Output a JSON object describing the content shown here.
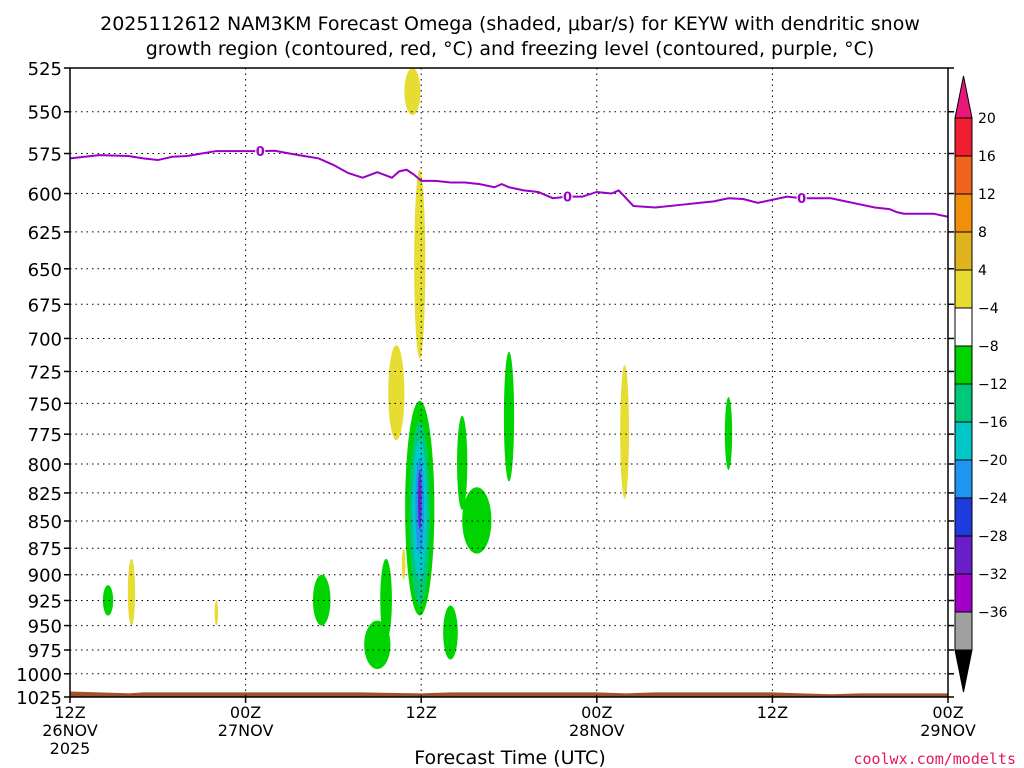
{
  "chart_data": {
    "type": "heatmap",
    "title_line1": "2025112612 NAM3KM Forecast Omega (shaded, μbar/s) for KEYW with dendritic snow",
    "title_line2": "growth region (contoured, red, °C) and freezing level (contoured, purple, °C)",
    "xlabel": "Forecast Time (UTC)",
    "credit": "coolwx.com/modelts",
    "x_range_hours": [
      0,
      60
    ],
    "y_range_hpa": [
      525,
      1025
    ],
    "y_scale": "log-pressure",
    "grid": true,
    "y_ticks": [
      525,
      550,
      575,
      600,
      625,
      650,
      675,
      700,
      725,
      750,
      775,
      800,
      825,
      850,
      875,
      900,
      925,
      950,
      975,
      1000,
      1025
    ],
    "x_ticks": [
      {
        "hour": 0,
        "line1": "12Z",
        "line2": "26NOV",
        "line3": "2025"
      },
      {
        "hour": 12,
        "line1": "00Z",
        "line2": "27NOV",
        "line3": ""
      },
      {
        "hour": 24,
        "line1": "12Z",
        "line2": "",
        "line3": ""
      },
      {
        "hour": 36,
        "line1": "00Z",
        "line2": "28NOV",
        "line3": ""
      },
      {
        "hour": 48,
        "line1": "12Z",
        "line2": "",
        "line3": ""
      },
      {
        "hour": 60,
        "line1": "00Z",
        "line2": "29NOV",
        "line3": ""
      }
    ],
    "colorbar": {
      "labels": [
        "20",
        "16",
        "12",
        "8",
        "4",
        "−4",
        "−8",
        "−12",
        "−16",
        "−20",
        "−24",
        "−28",
        "−32",
        "−36"
      ],
      "top_arrow_color": "#e8177a",
      "bottom_arrow_color": "#000000",
      "bins": [
        {
          "color": "#f01e30"
        },
        {
          "color": "#f06420"
        },
        {
          "color": "#f0900a"
        },
        {
          "color": "#e0b41e"
        },
        {
          "color": "#e6dc32"
        },
        {
          "color": "#ffffff"
        },
        {
          "color": "#00d400"
        },
        {
          "color": "#00c878"
        },
        {
          "color": "#00c8c8"
        },
        {
          "color": "#1e96f0"
        },
        {
          "color": "#1e3cdc"
        },
        {
          "color": "#6a1ec8"
        },
        {
          "color": "#a000c8"
        },
        {
          "color": "#a0a0a0"
        }
      ]
    },
    "freezing_level": {
      "color": "#9a00c8",
      "label": "0",
      "label_hours": [
        13,
        34,
        50
      ],
      "points": [
        [
          0,
          578
        ],
        [
          1,
          577
        ],
        [
          2,
          576
        ],
        [
          4,
          576.5
        ],
        [
          5,
          578
        ],
        [
          6,
          579
        ],
        [
          7,
          577
        ],
        [
          8,
          576.5
        ],
        [
          9,
          575
        ],
        [
          10,
          573.5
        ],
        [
          11,
          573.5
        ],
        [
          12,
          573.5
        ],
        [
          13,
          573.5
        ],
        [
          14,
          573.3
        ],
        [
          15,
          575
        ],
        [
          16,
          576.5
        ],
        [
          17,
          578
        ],
        [
          18,
          582
        ],
        [
          19,
          587
        ],
        [
          20,
          590
        ],
        [
          21,
          586.5
        ],
        [
          22,
          590
        ],
        [
          22.5,
          586
        ],
        [
          23,
          585
        ],
        [
          23.5,
          588
        ],
        [
          24,
          592
        ],
        [
          25,
          592
        ],
        [
          26,
          593
        ],
        [
          27,
          593
        ],
        [
          28,
          594
        ],
        [
          29,
          596
        ],
        [
          29.5,
          594
        ],
        [
          30,
          596
        ],
        [
          31,
          598
        ],
        [
          32,
          599
        ],
        [
          32.5,
          601
        ],
        [
          33,
          603
        ],
        [
          34,
          602
        ],
        [
          35,
          602
        ],
        [
          36,
          599
        ],
        [
          37,
          600
        ],
        [
          37.5,
          598
        ],
        [
          38,
          603
        ],
        [
          38.5,
          608
        ],
        [
          40,
          609
        ],
        [
          42,
          607
        ],
        [
          43,
          606
        ],
        [
          44,
          605
        ],
        [
          45,
          603
        ],
        [
          46,
          603.5
        ],
        [
          47,
          606
        ],
        [
          48,
          604
        ],
        [
          49,
          602
        ],
        [
          50,
          603
        ],
        [
          51,
          603
        ],
        [
          52,
          603
        ],
        [
          53,
          605
        ],
        [
          54,
          607
        ],
        [
          55,
          609
        ],
        [
          56,
          610
        ],
        [
          56.5,
          612
        ],
        [
          57,
          613
        ],
        [
          58,
          613
        ],
        [
          59,
          613
        ],
        [
          60,
          615
        ]
      ]
    },
    "omega_blobs": [
      {
        "hour": 23.4,
        "hw": 0.55,
        "p_top": 525,
        "p_bot": 552,
        "color": "#e6dc32"
      },
      {
        "hour": 23.9,
        "hw": 0.38,
        "p_top": 585,
        "p_bot": 715,
        "color": "#e6dc32"
      },
      {
        "hour": 22.3,
        "hw": 0.55,
        "p_top": 705,
        "p_bot": 780,
        "color": "#e6dc32"
      },
      {
        "hour": 23.9,
        "hw": 1.0,
        "p_top": 748,
        "p_bot": 940,
        "color": "#00d400"
      },
      {
        "hour": 23.9,
        "hw": 0.7,
        "p_top": 765,
        "p_bot": 930,
        "color": "#00c878"
      },
      {
        "hour": 23.9,
        "hw": 0.5,
        "p_top": 780,
        "p_bot": 905,
        "color": "#00c8c8"
      },
      {
        "hour": 23.9,
        "hw": 0.3,
        "p_top": 795,
        "p_bot": 880,
        "color": "#1e96f0"
      },
      {
        "hour": 23.9,
        "hw": 0.12,
        "p_top": 805,
        "p_bot": 858,
        "color": "#6a1ec8"
      },
      {
        "hour": 27.8,
        "hw": 1.0,
        "p_top": 820,
        "p_bot": 880,
        "color": "#00d400"
      },
      {
        "hour": 26.8,
        "hw": 0.35,
        "p_top": 760,
        "p_bot": 840,
        "color": "#00d400"
      },
      {
        "hour": 30.0,
        "hw": 0.35,
        "p_top": 710,
        "p_bot": 815,
        "color": "#00d400"
      },
      {
        "hour": 37.9,
        "hw": 0.3,
        "p_top": 720,
        "p_bot": 830,
        "color": "#e6dc32"
      },
      {
        "hour": 45.0,
        "hw": 0.25,
        "p_top": 745,
        "p_bot": 805,
        "color": "#00d400"
      },
      {
        "hour": 21.6,
        "hw": 0.4,
        "p_top": 885,
        "p_bot": 965,
        "color": "#00d400"
      },
      {
        "hour": 21.0,
        "hw": 0.9,
        "p_top": 945,
        "p_bot": 995,
        "color": "#00d400"
      },
      {
        "hour": 26.0,
        "hw": 0.5,
        "p_top": 930,
        "p_bot": 985,
        "color": "#00d400"
      },
      {
        "hour": 17.2,
        "hw": 0.6,
        "p_top": 900,
        "p_bot": 950,
        "color": "#00d400"
      },
      {
        "hour": 2.6,
        "hw": 0.35,
        "p_top": 910,
        "p_bot": 940,
        "color": "#00d400"
      },
      {
        "hour": 4.2,
        "hw": 0.25,
        "p_top": 885,
        "p_bot": 950,
        "color": "#e6dc32"
      },
      {
        "hour": 10.0,
        "hw": 0.12,
        "p_top": 925,
        "p_bot": 950,
        "color": "#e6dc32"
      },
      {
        "hour": 22.8,
        "hw": 0.12,
        "p_top": 875,
        "p_bot": 905,
        "color": "#e6dc32"
      }
    ],
    "ground": {
      "color": "#a0522d",
      "points": [
        [
          0,
          1019
        ],
        [
          2,
          1020
        ],
        [
          4,
          1021
        ],
        [
          5,
          1020
        ],
        [
          20,
          1020
        ],
        [
          24,
          1021
        ],
        [
          26,
          1020
        ],
        [
          36,
          1020
        ],
        [
          38,
          1021
        ],
        [
          40,
          1020
        ],
        [
          48,
          1020
        ],
        [
          50,
          1021
        ],
        [
          52,
          1022
        ],
        [
          54,
          1021
        ],
        [
          60,
          1021
        ]
      ]
    }
  }
}
